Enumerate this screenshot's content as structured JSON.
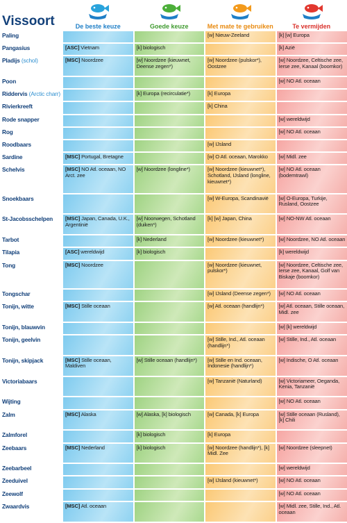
{
  "header": {
    "title": "Vissoort",
    "columns": [
      "De beste keuze",
      "Goede keuze",
      "Met mate te gebruiken",
      "Te vermijden"
    ]
  },
  "table": {
    "rows": [
      {
        "name": "Paling",
        "cells": [
          null,
          null,
          "[w] Nieuw-Zeeland",
          "[k] [w] Europa"
        ]
      },
      {
        "name": "Pangasius",
        "cells": [
          "[ASC] Vietnam",
          "[k] biologisch",
          null,
          "[k] Azië"
        ]
      },
      {
        "name": "Pladijs (schol)",
        "cells": [
          "[MSC] Noordzee",
          "[w] Noordzee (kieuwnet, Deense zegen*)",
          "[w] Noordzee (pulskor*), Oostzee",
          "[w] Noordzee, Celtische zee, Ierse zee, Kanaal (boomkor)"
        ]
      },
      {
        "name": "Poon",
        "cells": [
          null,
          null,
          null,
          "[w] NO Atl. oceaan"
        ]
      },
      {
        "name": "Riddervis (Arctic charr)",
        "cells": [
          null,
          "[k] Europa (recirculatie*)",
          "[k] Europa",
          null
        ]
      },
      {
        "name": "Rivierkreeft",
        "cells": [
          null,
          null,
          "[k] China",
          null
        ]
      },
      {
        "name": "Rode snapper",
        "cells": [
          null,
          null,
          null,
          "[w] wereldwijd"
        ]
      },
      {
        "name": "Rog",
        "cells": [
          null,
          null,
          null,
          "[w] NO Atl. oceaan"
        ]
      },
      {
        "name": "Roodbaars",
        "cells": [
          null,
          null,
          "[w] IJsland",
          null
        ]
      },
      {
        "name": "Sardine",
        "cells": [
          "[MSC] Portugal, Bretagne",
          null,
          "[w] O Atl. oceaan, Marokko",
          "[w] Midl. zee"
        ]
      },
      {
        "name": "Schelvis",
        "cells": [
          "[MSC] NO Atl. oceaan, NO Arct. zee",
          "[w] Noordzee (longline*)",
          "[w] Noordzee (kieuwnet*), Schotland, IJsland (longline, kieuwnet*)",
          "[w] NO Atl. oceaan (bodemtrawl)"
        ]
      },
      {
        "name": "Snoekbaars",
        "cells": [
          null,
          null,
          "[w] W-Europa, Scandinavië",
          "[w] O-Europa, Turkije, Rusland, Oostzee"
        ]
      },
      {
        "name": "St-Jacobsschelpen",
        "cells": [
          "[MSC] Japan, Canada, U.K., Argentinië",
          "[w] Noorwegen, Schotland (duiken*)",
          "[k] [w] Japan, China",
          "[w] NO-NW Atl. oceaan"
        ]
      },
      {
        "name": "Tarbot",
        "cells": [
          null,
          "[k] Nederland",
          "[w] Noordzee (kieuwnet*)",
          "[w] Noordzee, NO Atl. oceaan"
        ]
      },
      {
        "name": "Tilapia",
        "cells": [
          "[ASC] wereldwijd",
          "[k] biologisch",
          null,
          "[k] wereldwijd"
        ]
      },
      {
        "name": "Tong",
        "cells": [
          "[MSC] Noordzee",
          null,
          "[w] Noordzee (kieuwnet, pulskor*)",
          "[w] Noordzee, Celtische zee, Ierse zee, Kanaal, Golf van Biskaje (boomkor)"
        ]
      },
      {
        "name": "Tongschar",
        "cells": [
          null,
          null,
          "[w] IJsland (Deense zegen*)",
          "[w] NO Atl. oceaan"
        ]
      },
      {
        "name": "Tonijn, witte",
        "cells": [
          "[MSC] Stille oceaan",
          null,
          "[w] Atl. oceaan (handlijn*)",
          "[w] Atl. oceaan, Stille oceaan, Midl. zee"
        ]
      },
      {
        "name": "Tonijn, blauwvin",
        "cells": [
          null,
          null,
          null,
          "[w] [k] wereldwijd"
        ]
      },
      {
        "name": "Tonijn, geelvin",
        "cells": [
          null,
          null,
          "[w] Stille, Ind., Atl. oceaan (handlijn*)",
          "[w] Stille, Ind., Atl. oceaan"
        ]
      },
      {
        "name": "Tonijn, skipjack",
        "cells": [
          "[MSC] Stille oceaan, Maldiven",
          "[w] Stille oceaan (handlijn*)",
          "[w] Stille en Ind. oceaan, Indonesie (handlijn*)",
          "[w] Indische, O Atl. oceaan"
        ]
      },
      {
        "name": "Victoriabaars",
        "cells": [
          null,
          null,
          "[w] Tanzanië (Naturland)",
          "[w] Victoriameer, Oeganda, Kenia, Tanzanië"
        ]
      },
      {
        "name": "Wijting",
        "cells": [
          null,
          null,
          null,
          "[w] NO Atl. oceaan"
        ]
      },
      {
        "name": "Zalm",
        "cells": [
          "[MSC] Alaska",
          "[w] Alaska, [k] biologisch",
          "[w] Canada, [k] Europa",
          "[w] Stille oceaan (Rusland), [k] Chili"
        ]
      },
      {
        "name": "Zalmforel",
        "cells": [
          null,
          "[k] biologisch",
          "[k] Europa",
          null
        ]
      },
      {
        "name": "Zeebaars",
        "cells": [
          "[MSC] Nederland",
          "[k] biologisch",
          "[w] Noordzee (handlijn*), [k] Midl. Zee",
          "[w] Noordzee (sleepnet)"
        ]
      },
      {
        "name": "Zeebarbeel",
        "cells": [
          null,
          null,
          null,
          "[w] wereldwijd"
        ]
      },
      {
        "name": "Zeeduivel",
        "cells": [
          null,
          null,
          "[w] IJsland (kieuwnet*)",
          "[w] NO Atl. oceaan"
        ]
      },
      {
        "name": "Zeewolf",
        "cells": [
          null,
          null,
          null,
          "[w] NO Atl. oceaan"
        ]
      },
      {
        "name": "Zwaardvis",
        "cells": [
          "[MSC] Atl. oceaan",
          null,
          null,
          "[w] Midl. zee, Stille, Ind., Atl. oceaan"
        ]
      }
    ]
  }
}
